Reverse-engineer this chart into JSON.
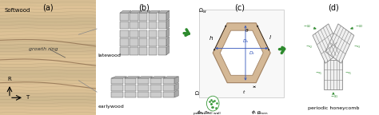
{
  "panel_labels": [
    "(a)",
    "(b)",
    "(c)",
    "(d)"
  ],
  "panel_a": {
    "text_softwood": "Softwood",
    "text_growth_ring": "growth ring",
    "text_R": "R",
    "text_T": "T",
    "wood_base": "#d8c4a0",
    "wood_light": "#e8d8b8",
    "wood_dark": "#c0a878",
    "grain_color": "#b09060",
    "ring_color": "#8a7050"
  },
  "panel_b": {
    "text_latewood": "latewood",
    "text_earlywood": "earlywood",
    "cell_face": "#c8c8c8",
    "cell_top": "#b0b0b0",
    "cell_side": "#a0a0a0",
    "cell_edge": "#505050"
  },
  "panel_c": {
    "wall_color": "#d4b896",
    "wall_edge": "#a08060",
    "lumen_color": "#ffffff",
    "dim_color": "#000000",
    "arrow_blue": "#3355bb",
    "border_color": "#bbbbbb"
  },
  "panel_d": {
    "text": "periodic honeycomb",
    "grid_color": "#888888",
    "arrow_color": "#2d8a2d",
    "label_color": "#2d8a2d"
  },
  "arrow_color": "#2d8a2d",
  "fig_bg": "#ffffff",
  "font_size_label": 7,
  "font_size_small": 5,
  "font_size_tiny": 4
}
